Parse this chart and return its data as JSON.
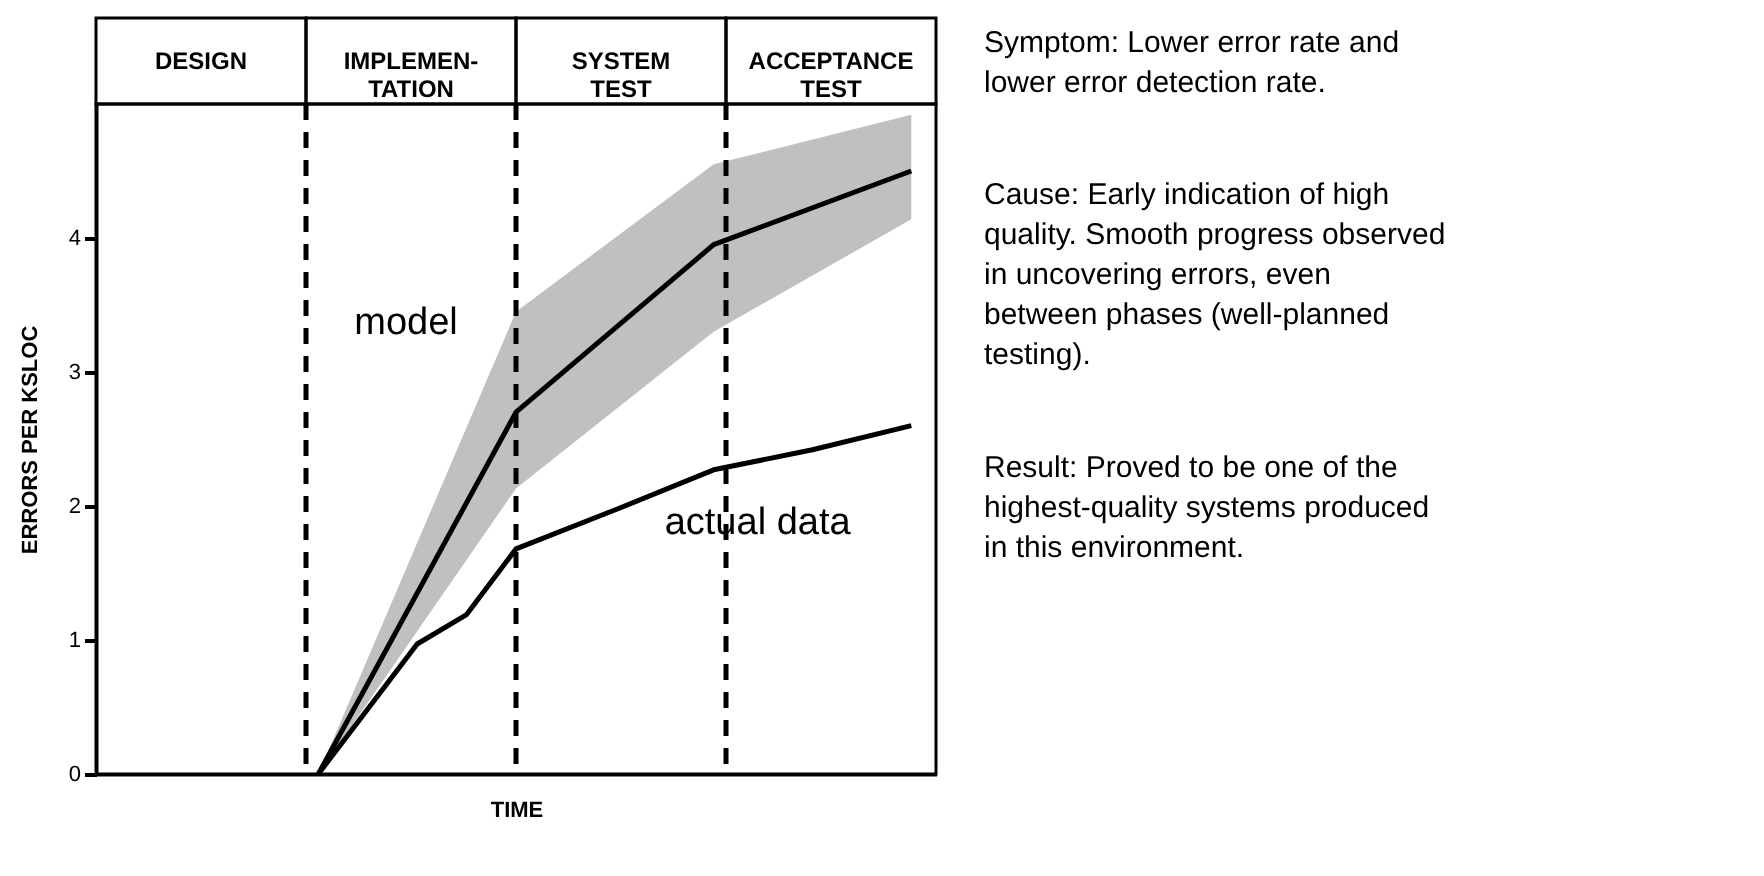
{
  "chart_data": {
    "type": "line",
    "xlabel": "TIME",
    "ylabel": "ERRORS PER KSLOC",
    "categories": [
      null,
      null,
      null,
      null,
      null,
      null,
      null,
      null,
      null,
      null,
      null,
      null,
      null,
      null,
      null,
      null,
      null
    ],
    "ylim": [
      0,
      5
    ],
    "yticks": [
      0,
      1,
      2,
      3,
      4
    ],
    "tick_labels": "y",
    "series": [
      {
        "name": "model",
        "color": "#000000",
        "values": [
          null,
          null,
          null,
          null,
          0,
          null,
          null,
          null,
          2.7,
          null,
          null,
          null,
          3.95,
          null,
          null,
          null,
          4.5
        ],
        "lower": [
          null,
          null,
          null,
          null,
          0,
          null,
          null,
          null,
          2.13,
          null,
          null,
          null,
          3.3,
          null,
          null,
          null,
          4.14
        ],
        "upper": [
          null,
          null,
          null,
          null,
          0,
          null,
          null,
          null,
          3.45,
          null,
          null,
          null,
          4.55,
          null,
          null,
          null,
          4.92
        ]
      },
      {
        "name": "actual data",
        "color": "#000000",
        "values": [
          null,
          null,
          null,
          null,
          0,
          null,
          0.97,
          1.19,
          1.68,
          null,
          1.97,
          null,
          2.27,
          null,
          2.42,
          null,
          2.6
        ]
      }
    ],
    "annotations": [
      {
        "text": "DESIGN"
      },
      {
        "text": "IMPLEMEN-\nTATION"
      },
      {
        "text": "SYSTEM\nTEST"
      },
      {
        "text": "ACCEPTANCE\nTEST"
      },
      "Symptom: Lower error rate and lower error detection rate.",
      "Cause: Early indication of high quality. Smooth progress observed in uncovering errors, even between phases (well-planned testing).",
      "Result: Proved to be one of the highest-quality systems produced in this environment."
    ],
    "grid": false,
    "legend": false,
    "marker": "none",
    "line_style": "solid"
  }
}
